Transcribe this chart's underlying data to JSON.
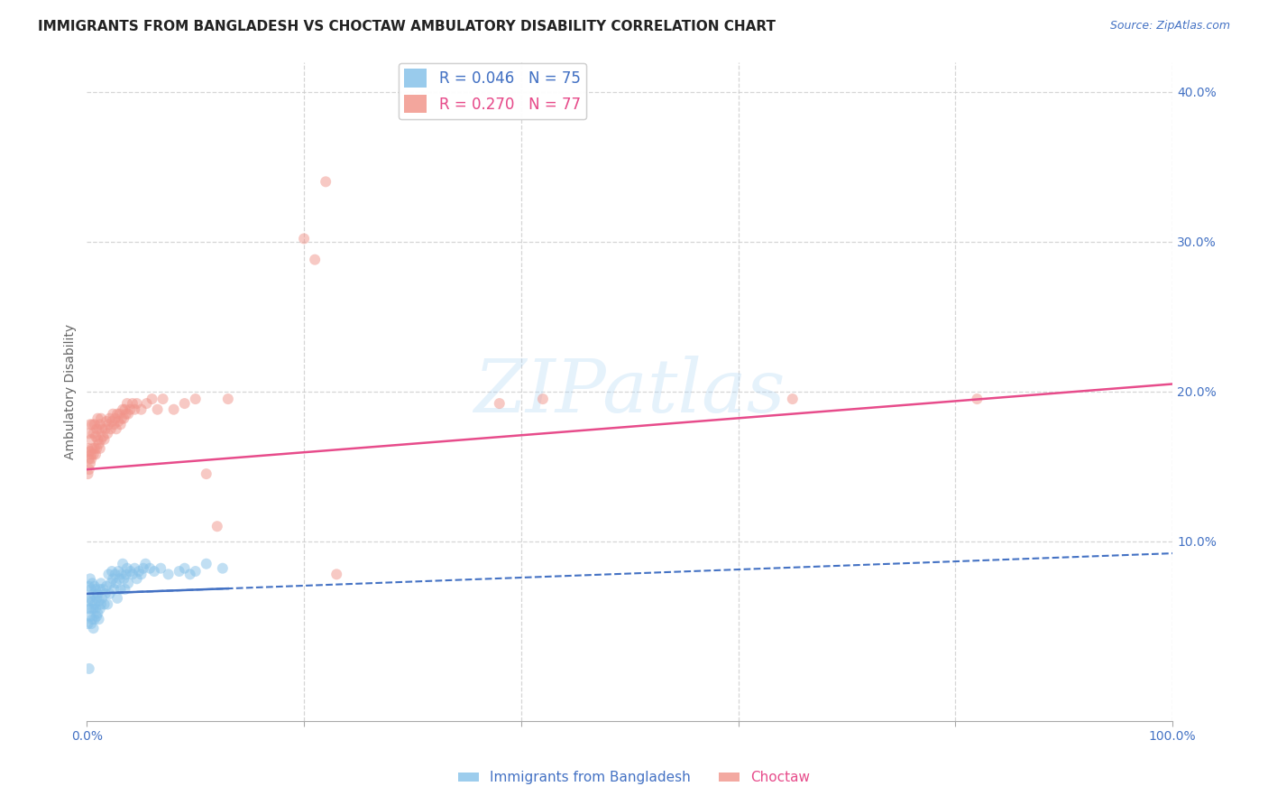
{
  "title": "IMMIGRANTS FROM BANGLADESH VS CHOCTAW AMBULATORY DISABILITY CORRELATION CHART",
  "source": "Source: ZipAtlas.com",
  "ylabel": "Ambulatory Disability",
  "xlim": [
    0,
    1.0
  ],
  "ylim": [
    -0.02,
    0.42
  ],
  "plot_ylim": [
    0,
    0.4
  ],
  "xticks": [
    0.0,
    0.2,
    0.4,
    0.6,
    0.8,
    1.0
  ],
  "xticklabels": [
    "0.0%",
    "",
    "",
    "",
    "",
    "100.0%"
  ],
  "yticks_right": [
    0.1,
    0.2,
    0.3,
    0.4
  ],
  "yticklabels_right": [
    "10.0%",
    "20.0%",
    "30.0%",
    "40.0%"
  ],
  "watermark_text": "ZIPatlas",
  "blue_scatter_x": [
    0.001,
    0.001,
    0.002,
    0.002,
    0.003,
    0.003,
    0.003,
    0.004,
    0.004,
    0.004,
    0.005,
    0.005,
    0.005,
    0.006,
    0.006,
    0.006,
    0.007,
    0.007,
    0.007,
    0.008,
    0.008,
    0.009,
    0.009,
    0.01,
    0.01,
    0.011,
    0.011,
    0.012,
    0.012,
    0.013,
    0.013,
    0.014,
    0.015,
    0.016,
    0.017,
    0.018,
    0.019,
    0.02,
    0.021,
    0.022,
    0.023,
    0.024,
    0.025,
    0.026,
    0.027,
    0.028,
    0.029,
    0.03,
    0.031,
    0.032,
    0.033,
    0.034,
    0.035,
    0.036,
    0.037,
    0.038,
    0.04,
    0.042,
    0.044,
    0.046,
    0.048,
    0.05,
    0.052,
    0.054,
    0.058,
    0.062,
    0.068,
    0.075,
    0.085,
    0.09,
    0.095,
    0.1,
    0.11,
    0.125,
    0.002
  ],
  "blue_scatter_y": [
    0.06,
    0.045,
    0.055,
    0.07,
    0.062,
    0.05,
    0.075,
    0.068,
    0.055,
    0.045,
    0.072,
    0.06,
    0.048,
    0.065,
    0.055,
    0.042,
    0.07,
    0.058,
    0.048,
    0.068,
    0.055,
    0.062,
    0.05,
    0.065,
    0.052,
    0.06,
    0.048,
    0.068,
    0.055,
    0.072,
    0.058,
    0.062,
    0.068,
    0.058,
    0.065,
    0.07,
    0.058,
    0.078,
    0.065,
    0.072,
    0.08,
    0.075,
    0.068,
    0.078,
    0.072,
    0.062,
    0.08,
    0.075,
    0.068,
    0.078,
    0.085,
    0.075,
    0.068,
    0.078,
    0.082,
    0.072,
    0.08,
    0.078,
    0.082,
    0.075,
    0.08,
    0.078,
    0.082,
    0.085,
    0.082,
    0.08,
    0.082,
    0.078,
    0.08,
    0.082,
    0.078,
    0.08,
    0.085,
    0.082,
    0.015
  ],
  "pink_scatter_x": [
    0.001,
    0.002,
    0.002,
    0.003,
    0.003,
    0.004,
    0.004,
    0.005,
    0.005,
    0.006,
    0.006,
    0.007,
    0.007,
    0.008,
    0.008,
    0.009,
    0.009,
    0.01,
    0.01,
    0.011,
    0.011,
    0.012,
    0.012,
    0.013,
    0.013,
    0.014,
    0.015,
    0.016,
    0.017,
    0.018,
    0.019,
    0.02,
    0.021,
    0.022,
    0.023,
    0.024,
    0.025,
    0.026,
    0.027,
    0.028,
    0.029,
    0.03,
    0.031,
    0.032,
    0.033,
    0.034,
    0.035,
    0.036,
    0.037,
    0.038,
    0.04,
    0.042,
    0.044,
    0.046,
    0.05,
    0.055,
    0.06,
    0.065,
    0.07,
    0.08,
    0.09,
    0.1,
    0.11,
    0.12,
    0.13,
    0.2,
    0.21,
    0.22,
    0.23,
    0.82,
    0.001,
    0.002,
    0.003,
    0.004,
    0.38,
    0.42,
    0.65
  ],
  "pink_scatter_y": [
    0.162,
    0.155,
    0.172,
    0.16,
    0.178,
    0.155,
    0.168,
    0.162,
    0.178,
    0.158,
    0.172,
    0.162,
    0.178,
    0.158,
    0.17,
    0.162,
    0.175,
    0.168,
    0.182,
    0.165,
    0.175,
    0.162,
    0.178,
    0.168,
    0.182,
    0.175,
    0.17,
    0.168,
    0.175,
    0.18,
    0.172,
    0.178,
    0.182,
    0.175,
    0.18,
    0.185,
    0.178,
    0.182,
    0.175,
    0.185,
    0.18,
    0.185,
    0.178,
    0.182,
    0.188,
    0.182,
    0.188,
    0.185,
    0.192,
    0.185,
    0.188,
    0.192,
    0.188,
    0.192,
    0.188,
    0.192,
    0.195,
    0.188,
    0.195,
    0.188,
    0.192,
    0.195,
    0.145,
    0.11,
    0.195,
    0.302,
    0.288,
    0.34,
    0.078,
    0.195,
    0.145,
    0.148,
    0.152,
    0.158,
    0.192,
    0.195,
    0.195
  ],
  "blue_line_x": [
    0.0,
    1.0
  ],
  "blue_line_y": [
    0.065,
    0.092
  ],
  "pink_line_x": [
    0.0,
    1.0
  ],
  "pink_line_y": [
    0.148,
    0.205
  ],
  "title_fontsize": 11,
  "axis_label_color": "#4472c4",
  "scatter_alpha": 0.5,
  "scatter_size": 75,
  "background_color": "#ffffff",
  "grid_color": "#cccccc",
  "grid_alpha": 0.8
}
